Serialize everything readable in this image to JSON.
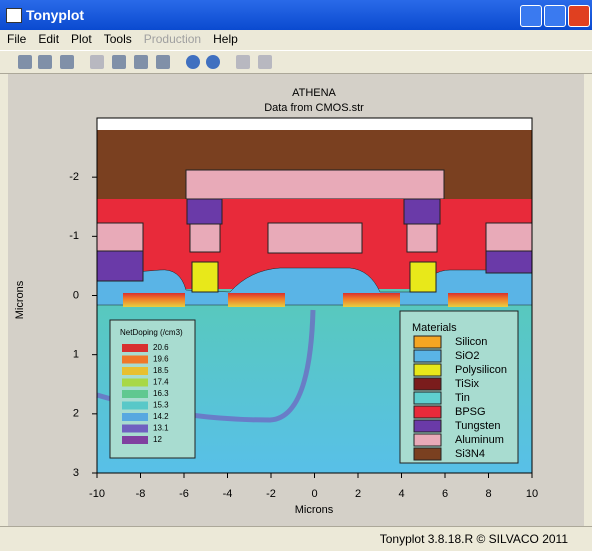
{
  "window": {
    "title": "Tonyplot"
  },
  "menu": [
    "File",
    "Edit",
    "Plot",
    "Tools",
    "Production",
    "Help"
  ],
  "plot": {
    "title": "ATHENA",
    "subtitle": "Data from CMOS.str",
    "xlabel": "Microns",
    "ylabel": "Microns",
    "xlim": [
      -10,
      10
    ],
    "xticks": [
      -10,
      -8,
      -6,
      -4,
      -2,
      0,
      2,
      4,
      6,
      8,
      10
    ],
    "ylim": [
      -3,
      3
    ],
    "yticks": [
      -2,
      -1,
      0,
      1,
      2,
      3
    ],
    "doping_legend": {
      "title": "NetDoping (/cm3)",
      "levels": [
        20.6,
        19.6,
        18.5,
        17.4,
        16.3,
        15.3,
        14.2,
        13.1,
        12
      ],
      "colors": [
        "#d83030",
        "#f07828",
        "#e8c030",
        "#a8d848",
        "#60c890",
        "#58c8c8",
        "#58a8e0",
        "#7060c0",
        "#8040a0"
      ]
    },
    "materials_legend": {
      "title": "Materials",
      "items": [
        {
          "name": "Silicon",
          "color": "#f5a623"
        },
        {
          "name": "SiO2",
          "color": "#5ab4e6"
        },
        {
          "name": "Polysilicon",
          "color": "#e8e81a"
        },
        {
          "name": "TiSix",
          "color": "#7a1c1c"
        },
        {
          "name": "Tin",
          "color": "#5fcfcf"
        },
        {
          "name": "BPSG",
          "color": "#e82a3a"
        },
        {
          "name": "Tungsten",
          "color": "#6a3aa8"
        },
        {
          "name": "Aluminum",
          "color": "#e8aab8"
        },
        {
          "name": "Si3N4",
          "color": "#7a4020"
        }
      ]
    }
  },
  "status": "Tonyplot 3.8.18.R © SILVACO 2011"
}
